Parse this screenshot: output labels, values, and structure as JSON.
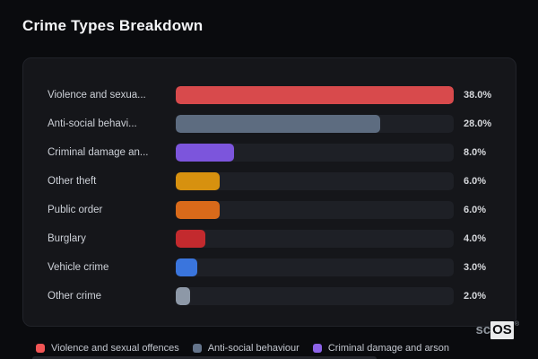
{
  "page": {
    "title": "Crime Types Breakdown",
    "background": "#0a0b0e",
    "card_background": "#15161a",
    "track_color": "#1e2026"
  },
  "chart_data": {
    "type": "bar",
    "orientation": "horizontal",
    "title": "Crime Types Breakdown",
    "xlim": [
      0,
      38
    ],
    "max_value": 38,
    "grid": false,
    "legend_position": "bottom",
    "categories": [
      "Violence and sexual offences",
      "Anti-social behaviour",
      "Criminal damage and arson",
      "Other theft",
      "Public order",
      "Burglary",
      "Vehicle crime",
      "Other crime"
    ],
    "labels_truncated": [
      "Violence and sexua...",
      "Anti-social behavi...",
      "Criminal damage an...",
      "Other theft",
      "Public order",
      "Burglary",
      "Vehicle crime",
      "Other crime"
    ],
    "values": [
      38.0,
      28.0,
      8.0,
      6.0,
      6.0,
      4.0,
      3.0,
      2.0
    ],
    "value_labels": [
      "38.0%",
      "28.0%",
      "8.0%",
      "6.0%",
      "6.0%",
      "4.0%",
      "3.0%",
      "2.0%"
    ],
    "colors": [
      "#d84a4c",
      "#5d6c80",
      "#7c55dc",
      "#d7910f",
      "#d96a1a",
      "#c32a2e",
      "#3a75dd",
      "#8d98a7"
    ],
    "legend": [
      {
        "label": "Violence and sexual offences",
        "color": "#f25555"
      },
      {
        "label": "Anti-social behaviour",
        "color": "#64748b"
      },
      {
        "label": "Criminal damage and arson",
        "color": "#8d63e8"
      }
    ]
  },
  "watermark": {
    "prefix": "sc",
    "suffix": "OS",
    "reg": "®"
  }
}
